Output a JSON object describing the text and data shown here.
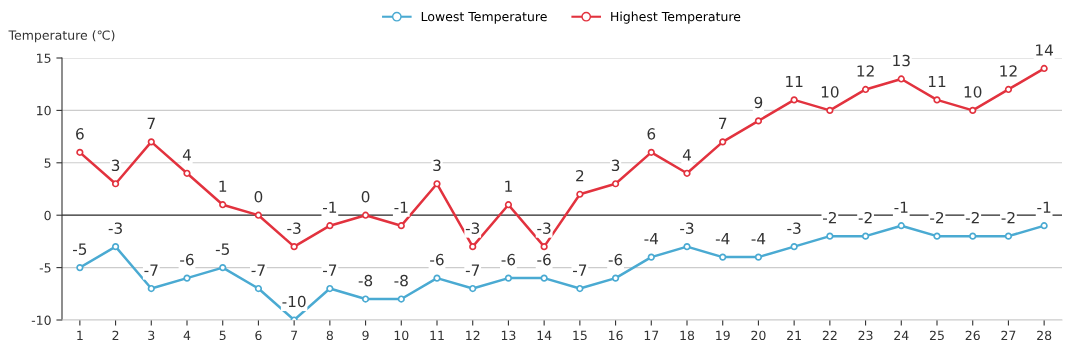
{
  "chart_data": {
    "type": "line",
    "ylabel": "Temperature (℃)",
    "categories": [
      "1",
      "2",
      "3",
      "4",
      "5",
      "6",
      "7",
      "8",
      "9",
      "10",
      "11",
      "12",
      "13",
      "14",
      "15",
      "16",
      "17",
      "18",
      "19",
      "20",
      "21",
      "22",
      "23",
      "24",
      "25",
      "26",
      "27",
      "28"
    ],
    "series": [
      {
        "name": "Lowest Temperature",
        "color": "#4aaad2",
        "values": [
          -5,
          -3,
          -7,
          -6,
          -5,
          -7,
          -10,
          -7,
          -8,
          -8,
          -6,
          -7,
          -6,
          -6,
          -7,
          -6,
          -4,
          -3,
          -4,
          -4,
          -3,
          -2,
          -2,
          -1,
          -2,
          -2,
          -2,
          -1
        ]
      },
      {
        "name": "Highest Temperature",
        "color": "#e2323e",
        "values": [
          6,
          3,
          7,
          4,
          1,
          0,
          -3,
          -1,
          0,
          -1,
          3,
          -3,
          1,
          -3,
          2,
          3,
          6,
          4,
          7,
          9,
          11,
          10,
          12,
          13,
          11,
          10,
          12,
          14
        ]
      }
    ],
    "ylim": [
      -10,
      15
    ],
    "yticks": [
      -10,
      -5,
      0,
      5,
      10,
      15
    ],
    "grid": "y",
    "legend": "top",
    "marker": "circle",
    "line_style": "solid",
    "data_labels": true
  }
}
